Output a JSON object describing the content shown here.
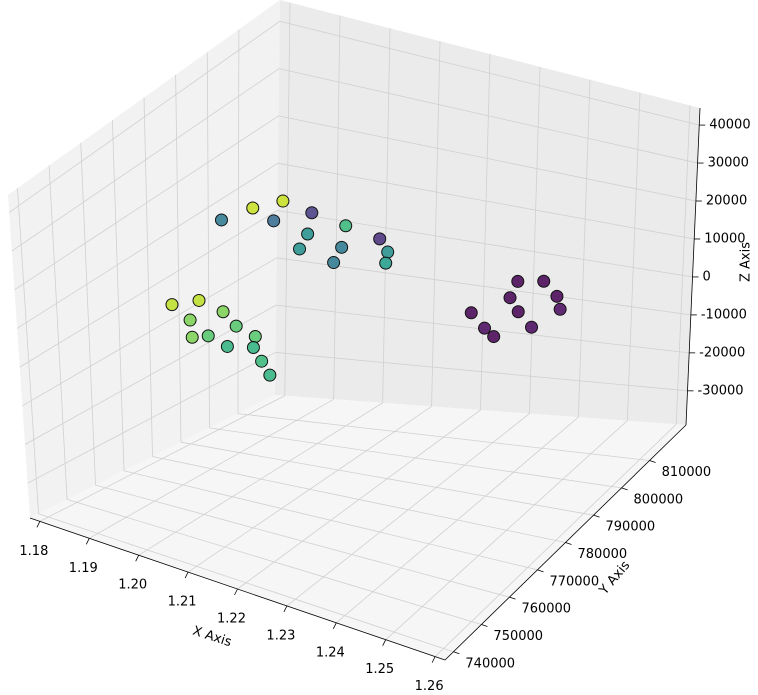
{
  "chart_data": {
    "type": "scatter3d",
    "xlabel": "X Axis",
    "ylabel": "Y Axis",
    "zlabel": "Z Axis",
    "xlim": [
      1.178,
      1.262
    ],
    "ylim": [
      737000,
      823000
    ],
    "zlim": [
      -39000,
      44500
    ],
    "xticks": [
      1.18,
      1.19,
      {
        "value": 1.2,
        "label": "1.20"
      },
      1.21,
      1.22,
      1.23,
      1.24,
      1.25,
      1.26
    ],
    "yticks": [
      740000,
      750000,
      760000,
      770000,
      780000,
      790000,
      800000,
      810000
    ],
    "zticks": [
      -30000,
      -20000,
      -10000,
      0,
      10000,
      20000,
      30000,
      40000
    ],
    "grid": true,
    "x": [
      1.245,
      1.248,
      1.25,
      1.252,
      1.255,
      1.257,
      1.253,
      1.246,
      1.258,
      1.25,
      1.19,
      1.193,
      1.196,
      1.199,
      1.202,
      1.204,
      1.207,
      1.209,
      1.211,
      1.2,
      1.215,
      1.219,
      1.19,
      1.193,
      1.188,
      1.196,
      1.2,
      1.204,
      1.208,
      1.212,
      1.216,
      1.22,
      1.222,
      1.214,
      1.206
    ],
    "y": [
      776000,
      784000,
      772000,
      780000,
      788000,
      776000,
      770000,
      790000,
      784000,
      792000,
      768000,
      772000,
      764000,
      770000,
      760000,
      766000,
      758000,
      764000,
      760000,
      758000,
      756000,
      752000,
      795000,
      800000,
      788000,
      792000,
      798000,
      790000,
      796000,
      788000,
      794000,
      790000,
      786000,
      782000,
      784000
    ],
    "z": [
      15000,
      15000,
      15000,
      15000,
      15000,
      15000,
      15000,
      15000,
      15000,
      15000,
      5000,
      5000,
      5000,
      5000,
      5000,
      5000,
      5000,
      5000,
      5000,
      5000,
      5000,
      5000,
      15000,
      15000,
      15000,
      15000,
      15000,
      15000,
      15000,
      15000,
      15000,
      15000,
      15000,
      15000,
      15000
    ],
    "colors": [
      "#440154",
      "#440154",
      "#46085c",
      "#440154",
      "#440154",
      "#46085c",
      "#440154",
      "#440154",
      "#46085c",
      "#440154",
      "#bddf26",
      "#bddf26",
      "#7ad151",
      "#7ad151",
      "#52c569",
      "#52c569",
      "#2db27d",
      "#52c569",
      "#2db27d",
      "#7ad151",
      "#35b779",
      "#2db27d",
      "#c8e020",
      "#c8e020",
      "#2a788e",
      "#31688e",
      "#443983",
      "#21918c",
      "#35b779",
      "#2a788e",
      "#472d7b",
      "#21918c",
      "#1f9e89",
      "#2a788e",
      "#21918c"
    ]
  }
}
